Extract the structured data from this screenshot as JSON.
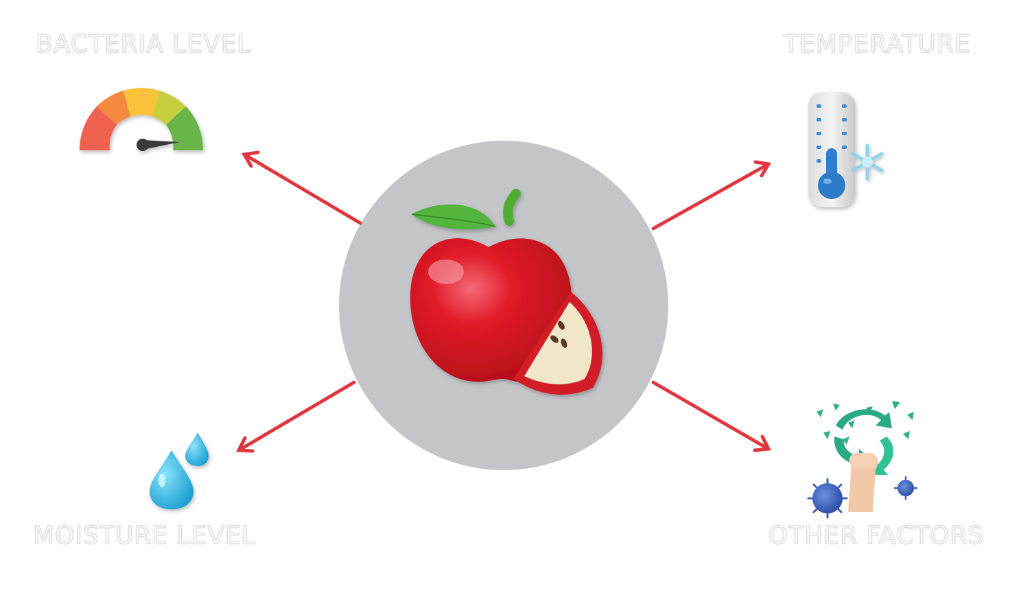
{
  "labels": {
    "bacteria": "BACTERIA LEVEL",
    "temperature": "TEMPERATURE",
    "moisture": "MOISTURE LEVEL",
    "other": "OTHER FACTORS"
  },
  "colors": {
    "arrow": "#e0363e",
    "circle": "#c4c5c8",
    "apple": "#d61f2a"
  },
  "icons": [
    "gauge-icon",
    "thermometer-icon",
    "water-drops-icon",
    "recycle-virus-icon",
    "apple-icon"
  ]
}
